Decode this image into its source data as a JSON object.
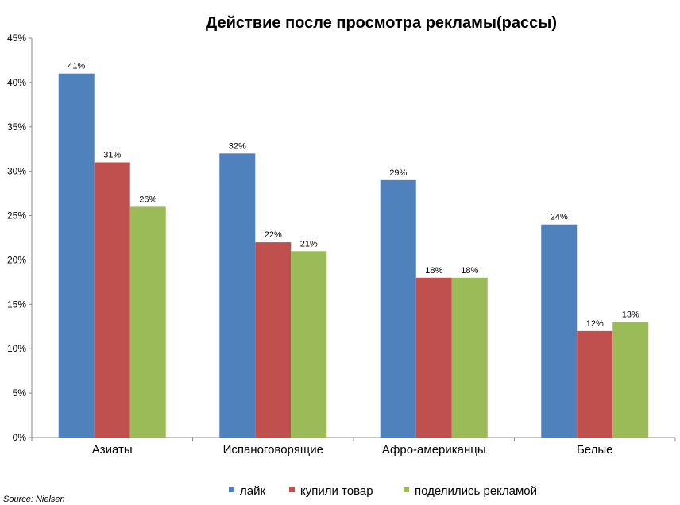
{
  "chart_data": {
    "type": "bar",
    "title": "Действие после просмотра рекламы(рассы)",
    "categories": [
      "Азиаты",
      "Испаноговорящие",
      "Афро-американцы",
      "Белые"
    ],
    "series": [
      {
        "name": "лайк",
        "color": "#4F81BD",
        "values": [
          41,
          32,
          29,
          24
        ]
      },
      {
        "name": "купили товар",
        "color": "#C0504D",
        "values": [
          31,
          22,
          18,
          12
        ]
      },
      {
        "name": "поделились рекламой",
        "color": "#9BBB59",
        "values": [
          26,
          21,
          18,
          13
        ]
      }
    ],
    "ylim": [
      0,
      45
    ],
    "yticks": [
      0,
      5,
      10,
      15,
      20,
      25,
      30,
      35,
      40,
      45
    ],
    "ytick_format": "%",
    "value_suffix": "%",
    "grid": false,
    "legend_placement": "bottom",
    "source": "Source: Nielsen"
  }
}
